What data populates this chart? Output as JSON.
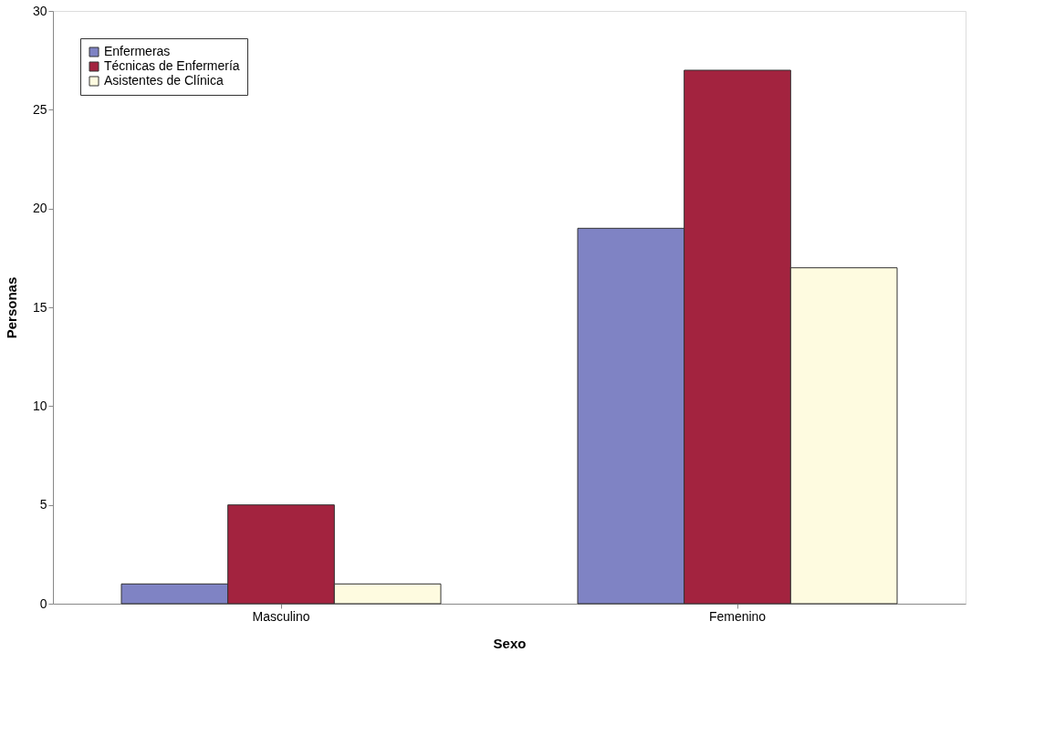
{
  "chart_data": {
    "type": "bar",
    "xlabel": "Sexo",
    "ylabel": "Personas",
    "categories": [
      "Masculino",
      "Femenino"
    ],
    "series": [
      {
        "name": "Enfermeras",
        "color": "#7f83c4",
        "values": [
          1,
          19
        ]
      },
      {
        "name": "Técnicas de Enfermería",
        "color": "#a3233f",
        "values": [
          5,
          27
        ]
      },
      {
        "name": "Asistentes de Clínica",
        "color": "#fefbe0",
        "values": [
          1,
          17
        ]
      }
    ],
    "ylim": [
      0,
      30
    ],
    "yticks": [
      0,
      5,
      10,
      15,
      20,
      25,
      30
    ],
    "grid": false,
    "legend": "top left"
  }
}
